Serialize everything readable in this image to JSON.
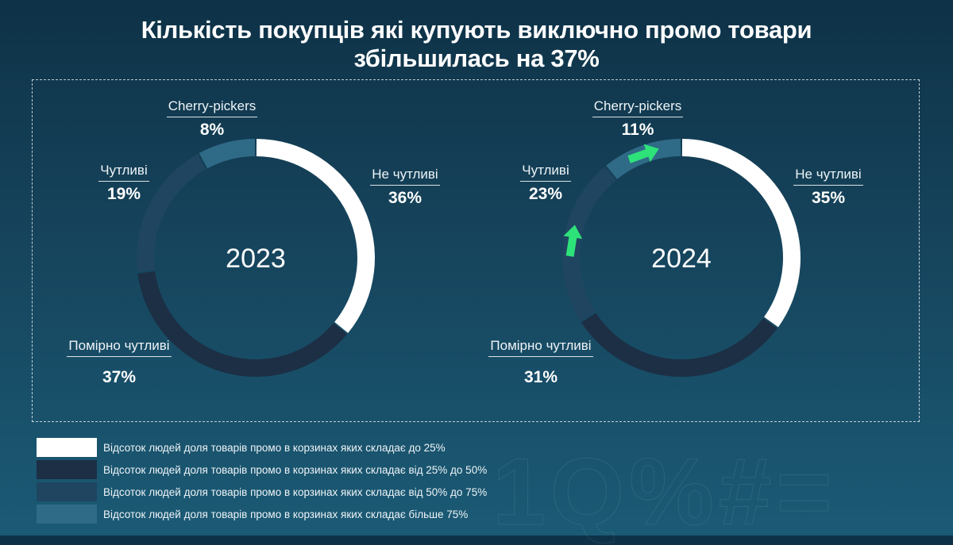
{
  "title": {
    "line1": "Кількість покупців які купують виключно промо товари",
    "line2": "збільшилась на 37%"
  },
  "colors": {
    "not_sensitive": "#ffffff",
    "moderate": "#1c2f44",
    "sensitive": "#1f4561",
    "cherry": "#2f6a86",
    "arrow": "#2ee27a"
  },
  "chart_data": [
    {
      "type": "pie",
      "variant": "donut",
      "year": "2023",
      "segments": [
        {
          "key": "not_sensitive",
          "label": "Не чутливі",
          "value": 36,
          "display": "36%"
        },
        {
          "key": "moderate",
          "label": "Помірно чутливі",
          "value": 37,
          "display": "37%"
        },
        {
          "key": "sensitive",
          "label": "Чутливі",
          "value": 19,
          "display": "19%"
        },
        {
          "key": "cherry",
          "label": "Cherry-pickers",
          "value": 8,
          "display": "8%"
        }
      ]
    },
    {
      "type": "pie",
      "variant": "donut",
      "year": "2024",
      "segments": [
        {
          "key": "not_sensitive",
          "label": "Не чутливі",
          "value": 35,
          "display": "35%"
        },
        {
          "key": "moderate",
          "label": "Помірно чутливі",
          "value": 31,
          "display": "31%"
        },
        {
          "key": "sensitive",
          "label": "Чутливі",
          "value": 23,
          "display": "23%"
        },
        {
          "key": "cherry",
          "label": "Cherry-pickers",
          "value": 11,
          "display": "11%"
        }
      ],
      "increase_arrows": [
        "sensitive",
        "cherry"
      ]
    }
  ],
  "legend": [
    {
      "key": "not_sensitive",
      "text": "Відсоток людей доля товарів промо в корзинах яких складає до 25%"
    },
    {
      "key": "moderate",
      "text": "Відсоток людей доля товарів промо в корзинах яких складає від 25% до 50%"
    },
    {
      "key": "sensitive",
      "text": "Відсоток людей доля товарів промо в корзинах яких складає від 50% до 75%"
    },
    {
      "key": "cherry",
      "text": "Відсоток людей доля товарів промо в корзинах яких складає більше 75%"
    }
  ]
}
